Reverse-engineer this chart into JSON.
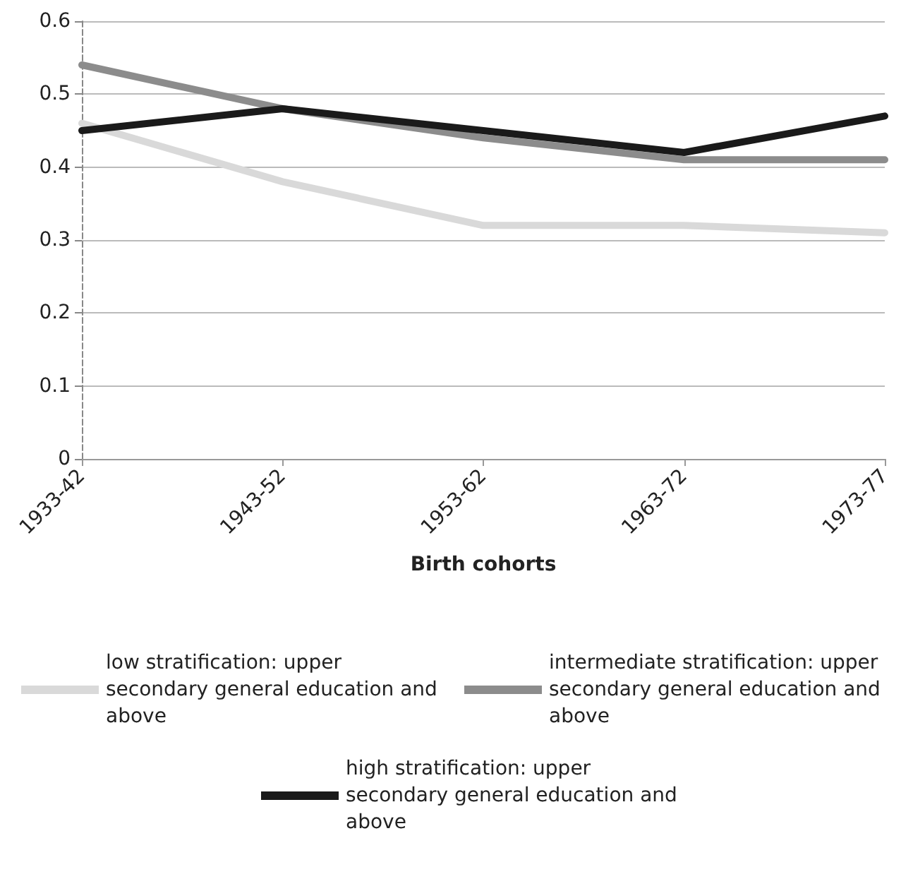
{
  "chart_data": {
    "type": "line",
    "xlabel": "Birth cohorts",
    "categories": [
      "1933-42",
      "1943-52",
      "1953-62",
      "1963-72",
      "1973-77"
    ],
    "series": [
      {
        "name": "low stratification: upper secondary general education and above",
        "color": "#d9d9d9",
        "values": [
          0.46,
          0.38,
          0.32,
          0.32,
          0.31
        ]
      },
      {
        "name": "intermediate stratification: upper secondary general education and above",
        "color": "#8c8c8c",
        "values": [
          0.54,
          0.48,
          0.44,
          0.41,
          0.41
        ]
      },
      {
        "name": "high stratification: upper secondary general education and above",
        "color": "#1a1a1a",
        "values": [
          0.45,
          0.48,
          0.45,
          0.42,
          0.47
        ]
      }
    ],
    "ylim": [
      0,
      0.6
    ],
    "yticks": [
      0,
      0.1,
      0.2,
      0.3,
      0.4,
      0.5,
      0.6
    ],
    "grid": "y",
    "legend": "bottom",
    "marker": "none",
    "line_style": "solid"
  }
}
